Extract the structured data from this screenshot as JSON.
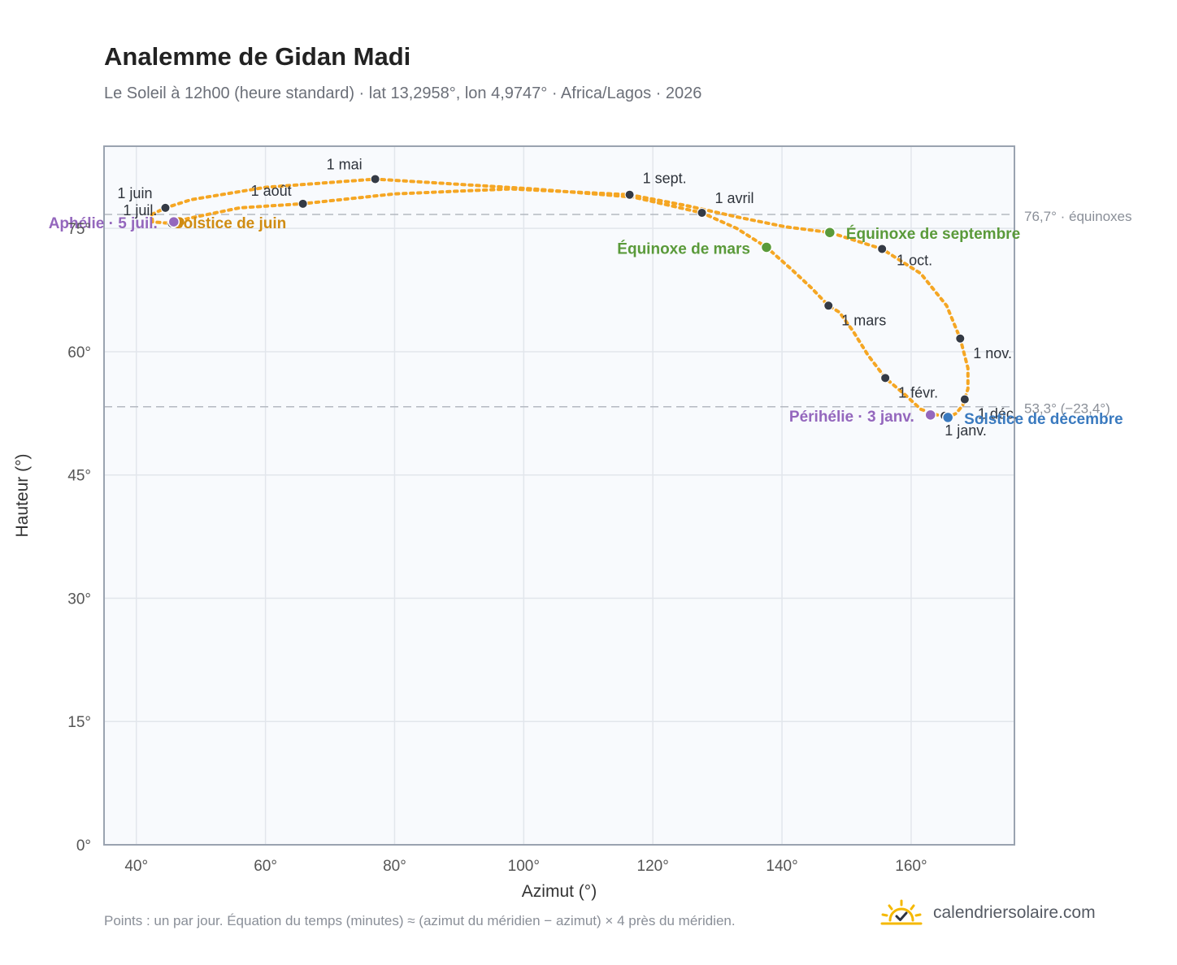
{
  "header": {
    "title": "Analemme de Gidan Madi",
    "subtitle": "Le Soleil à 12h00 (heure standard) · lat 13,2958°, lon 4,9747° · Africa/Lagos · 2026"
  },
  "footer": {
    "note": "Points : un par jour. Équation du temps (minutes) ≈ (azimut du méridien − azimut) × 4 près du méridien.",
    "brand": "calendriersolaire.com",
    "brand_icon": "sun-check-icon"
  },
  "colors": {
    "curve": "#f5a623",
    "month_marker": "#343a45",
    "equinox": "#5a9a3a",
    "aphelion": "#9467bd",
    "solstice_june": "#d08c12",
    "solstice_december": "#3a7abf",
    "reference_line": "#b4b9c1",
    "plot_background": "#f8fafd",
    "grid": "#e2e6ec"
  },
  "chart_data": {
    "type": "scatter",
    "xlabel": "Azimut (°)",
    "ylabel": "Hauteur (°)",
    "xlim": [
      35,
      176
    ],
    "ylim": [
      0,
      85
    ],
    "xticks": [
      40,
      60,
      80,
      100,
      120,
      140,
      160
    ],
    "xtick_labels": [
      "40°",
      "60°",
      "80°",
      "100°",
      "120°",
      "140°",
      "160°"
    ],
    "yticks": [
      0,
      15,
      30,
      45,
      60,
      75
    ],
    "ytick_labels": [
      "0°",
      "15°",
      "30°",
      "45°",
      "60°",
      "75°"
    ],
    "grid": true,
    "series": [
      {
        "path": [
          [
            165.2,
            52.2
          ],
          [
            164.0,
            52.3
          ],
          [
            161.5,
            53.0
          ],
          [
            159.0,
            54.8
          ],
          [
            156.0,
            56.8
          ],
          [
            153.3,
            59.6
          ],
          [
            151.0,
            62.5
          ],
          [
            148.9,
            64.8
          ],
          [
            147.2,
            65.6
          ],
          [
            144.5,
            67.8
          ],
          [
            141.5,
            70.0
          ],
          [
            137.6,
            72.7
          ],
          [
            133.0,
            75.0
          ],
          [
            127.6,
            76.9
          ],
          [
            117.0,
            78.8
          ],
          [
            101.5,
            79.8
          ],
          [
            77.0,
            81.0
          ],
          [
            60.0,
            80.0
          ],
          [
            48.5,
            78.5
          ],
          [
            44.5,
            77.5
          ],
          [
            42.4,
            76.7
          ],
          [
            42.5,
            75.8
          ],
          [
            45.5,
            75.6
          ],
          [
            48.0,
            76.2
          ],
          [
            56.0,
            77.5
          ],
          [
            65.8,
            78.0
          ],
          [
            80.0,
            79.2
          ],
          [
            98.0,
            79.8
          ],
          [
            116.4,
            79.1
          ],
          [
            125.0,
            77.8
          ],
          [
            133.0,
            76.4
          ],
          [
            140.5,
            75.2
          ],
          [
            147.4,
            74.5
          ],
          [
            155.5,
            72.5
          ],
          [
            161.5,
            69.5
          ],
          [
            165.5,
            65.6
          ],
          [
            167.6,
            61.6
          ],
          [
            168.8,
            58.0
          ],
          [
            168.8,
            55.5
          ],
          [
            168.0,
            53.5
          ],
          [
            167.0,
            52.5
          ],
          [
            166.0,
            52.1
          ],
          [
            165.2,
            52.2
          ]
        ]
      }
    ],
    "month_markers": [
      {
        "label": "1 janv.",
        "x": 165.2,
        "y": 52.2
      },
      {
        "label": "1 févr.",
        "x": 156.0,
        "y": 56.8
      },
      {
        "label": "1 mars",
        "x": 147.2,
        "y": 65.6
      },
      {
        "label": "1 avril",
        "x": 127.6,
        "y": 76.9
      },
      {
        "label": "1 mai",
        "x": 77.0,
        "y": 81.0
      },
      {
        "label": "1 juin",
        "x": 44.5,
        "y": 77.5
      },
      {
        "label": "1 juil.",
        "x": 45.5,
        "y": 75.6
      },
      {
        "label": "1 août",
        "x": 65.8,
        "y": 78.0
      },
      {
        "label": "1 sept.",
        "x": 116.4,
        "y": 79.1
      },
      {
        "label": "1 oct.",
        "x": 155.5,
        "y": 72.5
      },
      {
        "label": "1 nov.",
        "x": 167.6,
        "y": 61.6
      },
      {
        "label": "1 déc.",
        "x": 168.3,
        "y": 54.2
      }
    ],
    "events": [
      {
        "label": "Équinoxe de mars",
        "x": 137.6,
        "y": 72.7,
        "color": "#5a9a3a"
      },
      {
        "label": "Équinoxe de septembre",
        "x": 147.4,
        "y": 74.5,
        "color": "#5a9a3a"
      },
      {
        "label": "Solstice de juin",
        "x": 46.7,
        "y": 75.8,
        "color": "#d08c12"
      },
      {
        "label": "Solstice de décembre",
        "x": 165.7,
        "y": 52.0,
        "color": "#3a7abf"
      },
      {
        "label": "Aphélie · 5 juil.",
        "x": 45.8,
        "y": 75.8,
        "color": "#9467bd"
      },
      {
        "label": "Périhélie · 3 janv.",
        "x": 163.0,
        "y": 52.3,
        "color": "#9467bd"
      }
    ],
    "reference_lines": [
      {
        "y": 76.7,
        "label": "76,7° · équinoxes"
      },
      {
        "y": 53.3,
        "label": "53,3° (−23,4°)"
      }
    ]
  }
}
